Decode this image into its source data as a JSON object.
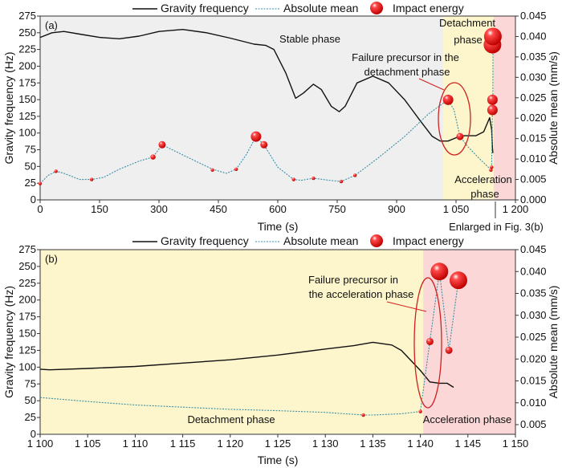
{
  "chart_data": [
    {
      "panel_label": "(a)",
      "type": "line",
      "xlabel": "Time (s)",
      "ylabel": "Gravity frequency (Hz)",
      "y2label": "Absolute mean (mm/s)",
      "xlim": [
        0,
        1200
      ],
      "ylim": [
        0,
        275
      ],
      "y2lim": [
        0,
        0.045
      ],
      "xticks": [
        0,
        150,
        300,
        450,
        600,
        750,
        900,
        1050,
        1200
      ],
      "xtick_labels": [
        "0",
        "150",
        "300",
        "450",
        "600",
        "750",
        "900",
        "1 050",
        "1 200"
      ],
      "yticks": [
        0,
        25,
        50,
        75,
        100,
        125,
        150,
        175,
        200,
        225,
        250,
        275
      ],
      "y2ticks": [
        "0.000",
        "0.005",
        "0.010",
        "0.015",
        "0.020",
        "0.025",
        "0.030",
        "0.035",
        "0.040",
        "0.045"
      ],
      "legend": {
        "placement": "top",
        "entries": [
          "Gravity frequency",
          "Absolute mean",
          "Impact energy"
        ]
      },
      "phases": [
        {
          "name": "Stable phase",
          "from": 0,
          "to": 1018,
          "color": "#efefef"
        },
        {
          "name": "Detachment phase",
          "from": 1018,
          "to": 1145,
          "color": "#fdf6cc"
        },
        {
          "name": "Acceleration phase",
          "from": 1145,
          "to": 1200,
          "color": "#fcd7d7"
        }
      ],
      "annotations": [
        "Failure precursor in the",
        "detachment phase",
        "Enlarged in Fig. 3(b)"
      ],
      "series": [
        {
          "name": "Gravity frequency",
          "axis": "left",
          "color": "#111111",
          "x": [
            0,
            30,
            60,
            100,
            150,
            200,
            250,
            300,
            360,
            420,
            480,
            540,
            570,
            590,
            620,
            645,
            665,
            690,
            710,
            735,
            755,
            770,
            800,
            840,
            880,
            920,
            960,
            990,
            1010,
            1030,
            1050,
            1070,
            1100,
            1120,
            1135,
            1140,
            1142,
            1143
          ],
          "y": [
            243,
            250,
            252,
            248,
            243,
            241,
            245,
            252,
            255,
            250,
            242,
            233,
            231,
            225,
            190,
            152,
            160,
            173,
            165,
            140,
            132,
            140,
            175,
            185,
            175,
            150,
            118,
            95,
            88,
            88,
            93,
            96,
            96,
            102,
            123,
            105,
            77,
            70
          ]
        },
        {
          "name": "Absolute mean",
          "axis": "right",
          "color": "#3a8fa6",
          "x": [
            0,
            20,
            40,
            60,
            100,
            130,
            160,
            200,
            250,
            285,
            308,
            360,
            435,
            470,
            495,
            520,
            545,
            565,
            600,
            640,
            660,
            690,
            730,
            760,
            795,
            850,
            920,
            980,
            1030,
            1045,
            1060,
            1080,
            1110,
            1137,
            1140,
            1142,
            1143,
            1143.5,
            1144
          ],
          "y": [
            0.004,
            0.006,
            0.007,
            0.0065,
            0.005,
            0.005,
            0.0055,
            0.0075,
            0.0095,
            0.0105,
            0.0135,
            0.011,
            0.0075,
            0.0065,
            0.0075,
            0.011,
            0.0155,
            0.0135,
            0.008,
            0.005,
            0.0048,
            0.0053,
            0.0048,
            0.0045,
            0.006,
            0.01,
            0.0155,
            0.021,
            0.0245,
            0.022,
            0.0155,
            0.013,
            0.01,
            0.0075,
            0.008,
            0.023,
            0.0245,
            0.038,
            0.04
          ]
        },
        {
          "name": "Impact energy",
          "axis": "right",
          "type": "bubble",
          "color": "#e00000",
          "x": [
            0,
            40,
            130,
            285,
            308,
            435,
            495,
            545,
            565,
            640,
            690,
            760,
            795,
            1030,
            1060,
            1138,
            1140,
            1142,
            1142,
            1142,
            1143
          ],
          "y": [
            0.004,
            0.007,
            0.005,
            0.0105,
            0.0135,
            0.0073,
            0.0075,
            0.0155,
            0.0135,
            0.005,
            0.0053,
            0.0045,
            0.006,
            0.0245,
            0.0155,
            0.0073,
            0.008,
            0.0245,
            0.022,
            0.038,
            0.04
          ],
          "size": [
            1,
            1,
            1,
            2,
            3,
            1,
            1,
            4,
            3,
            1,
            1,
            1,
            1,
            4,
            3,
            1,
            1,
            4,
            4,
            6,
            6
          ]
        }
      ]
    },
    {
      "panel_label": "(b)",
      "type": "line",
      "xlabel": "Time (s)",
      "ylabel": "Gravity frequency (Hz)",
      "y2label": "Absolute mean (mm/s)",
      "xlim": [
        1100,
        1150
      ],
      "ylim": [
        0,
        275
      ],
      "y2lim": [
        0.0028,
        0.045
      ],
      "xticks": [
        1100,
        1105,
        1110,
        1115,
        1120,
        1125,
        1130,
        1135,
        1140,
        1145,
        1150
      ],
      "xtick_labels": [
        "1 100",
        "1 105",
        "1 110",
        "1 115",
        "1 120",
        "1 125",
        "1 130",
        "1 135",
        "1 140",
        "1 145",
        "1 150"
      ],
      "yticks": [
        0,
        25,
        50,
        75,
        100,
        125,
        150,
        175,
        200,
        225,
        250,
        275
      ],
      "y2ticks": [
        "0.005",
        "0.010",
        "0.015",
        "0.020",
        "0.025",
        "0.030",
        "0.035",
        "0.040",
        "0.045"
      ],
      "legend": {
        "placement": "top",
        "entries": [
          "Gravity frequency",
          "Absolute mean",
          "Impact energy"
        ]
      },
      "phases": [
        {
          "name": "Detachment phase",
          "from": 1100,
          "to": 1140.3,
          "color": "#fdf6cc"
        },
        {
          "name": "Acceleration phase",
          "from": 1140.3,
          "to": 1150,
          "color": "#fcd7d7"
        }
      ],
      "annotations": [
        "Failure precursor in",
        "the acceleration phase"
      ],
      "series": [
        {
          "name": "Gravity frequency",
          "axis": "left",
          "color": "#111111",
          "x": [
            1100,
            1101,
            1105,
            1110,
            1115,
            1120,
            1125,
            1130,
            1133,
            1135,
            1137,
            1138,
            1139,
            1140,
            1141,
            1142,
            1142.8,
            1143.5
          ],
          "y": [
            97,
            96,
            98,
            101,
            106,
            111,
            118,
            127,
            132,
            137,
            133,
            125,
            110,
            95,
            78,
            76,
            76,
            70
          ]
        },
        {
          "name": "Absolute mean",
          "axis": "right",
          "color": "#3a8fa6",
          "x": [
            1100,
            1105,
            1110,
            1115,
            1120,
            1125,
            1130,
            1134,
            1135,
            1138,
            1140,
            1141,
            1142,
            1143,
            1144
          ],
          "y": [
            0.0112,
            0.0103,
            0.0095,
            0.009,
            0.0085,
            0.0082,
            0.0078,
            0.0072,
            0.0072,
            0.0075,
            0.008,
            0.024,
            0.04,
            0.022,
            0.038
          ]
        },
        {
          "name": "Impact energy",
          "axis": "right",
          "type": "bubble",
          "color": "#e00000",
          "x": [
            1134,
            1140,
            1141,
            1142,
            1143,
            1144
          ],
          "y": [
            0.0072,
            0.008,
            0.024,
            0.04,
            0.022,
            0.038
          ],
          "size": [
            1,
            1,
            3,
            6,
            3,
            6
          ]
        }
      ]
    }
  ]
}
